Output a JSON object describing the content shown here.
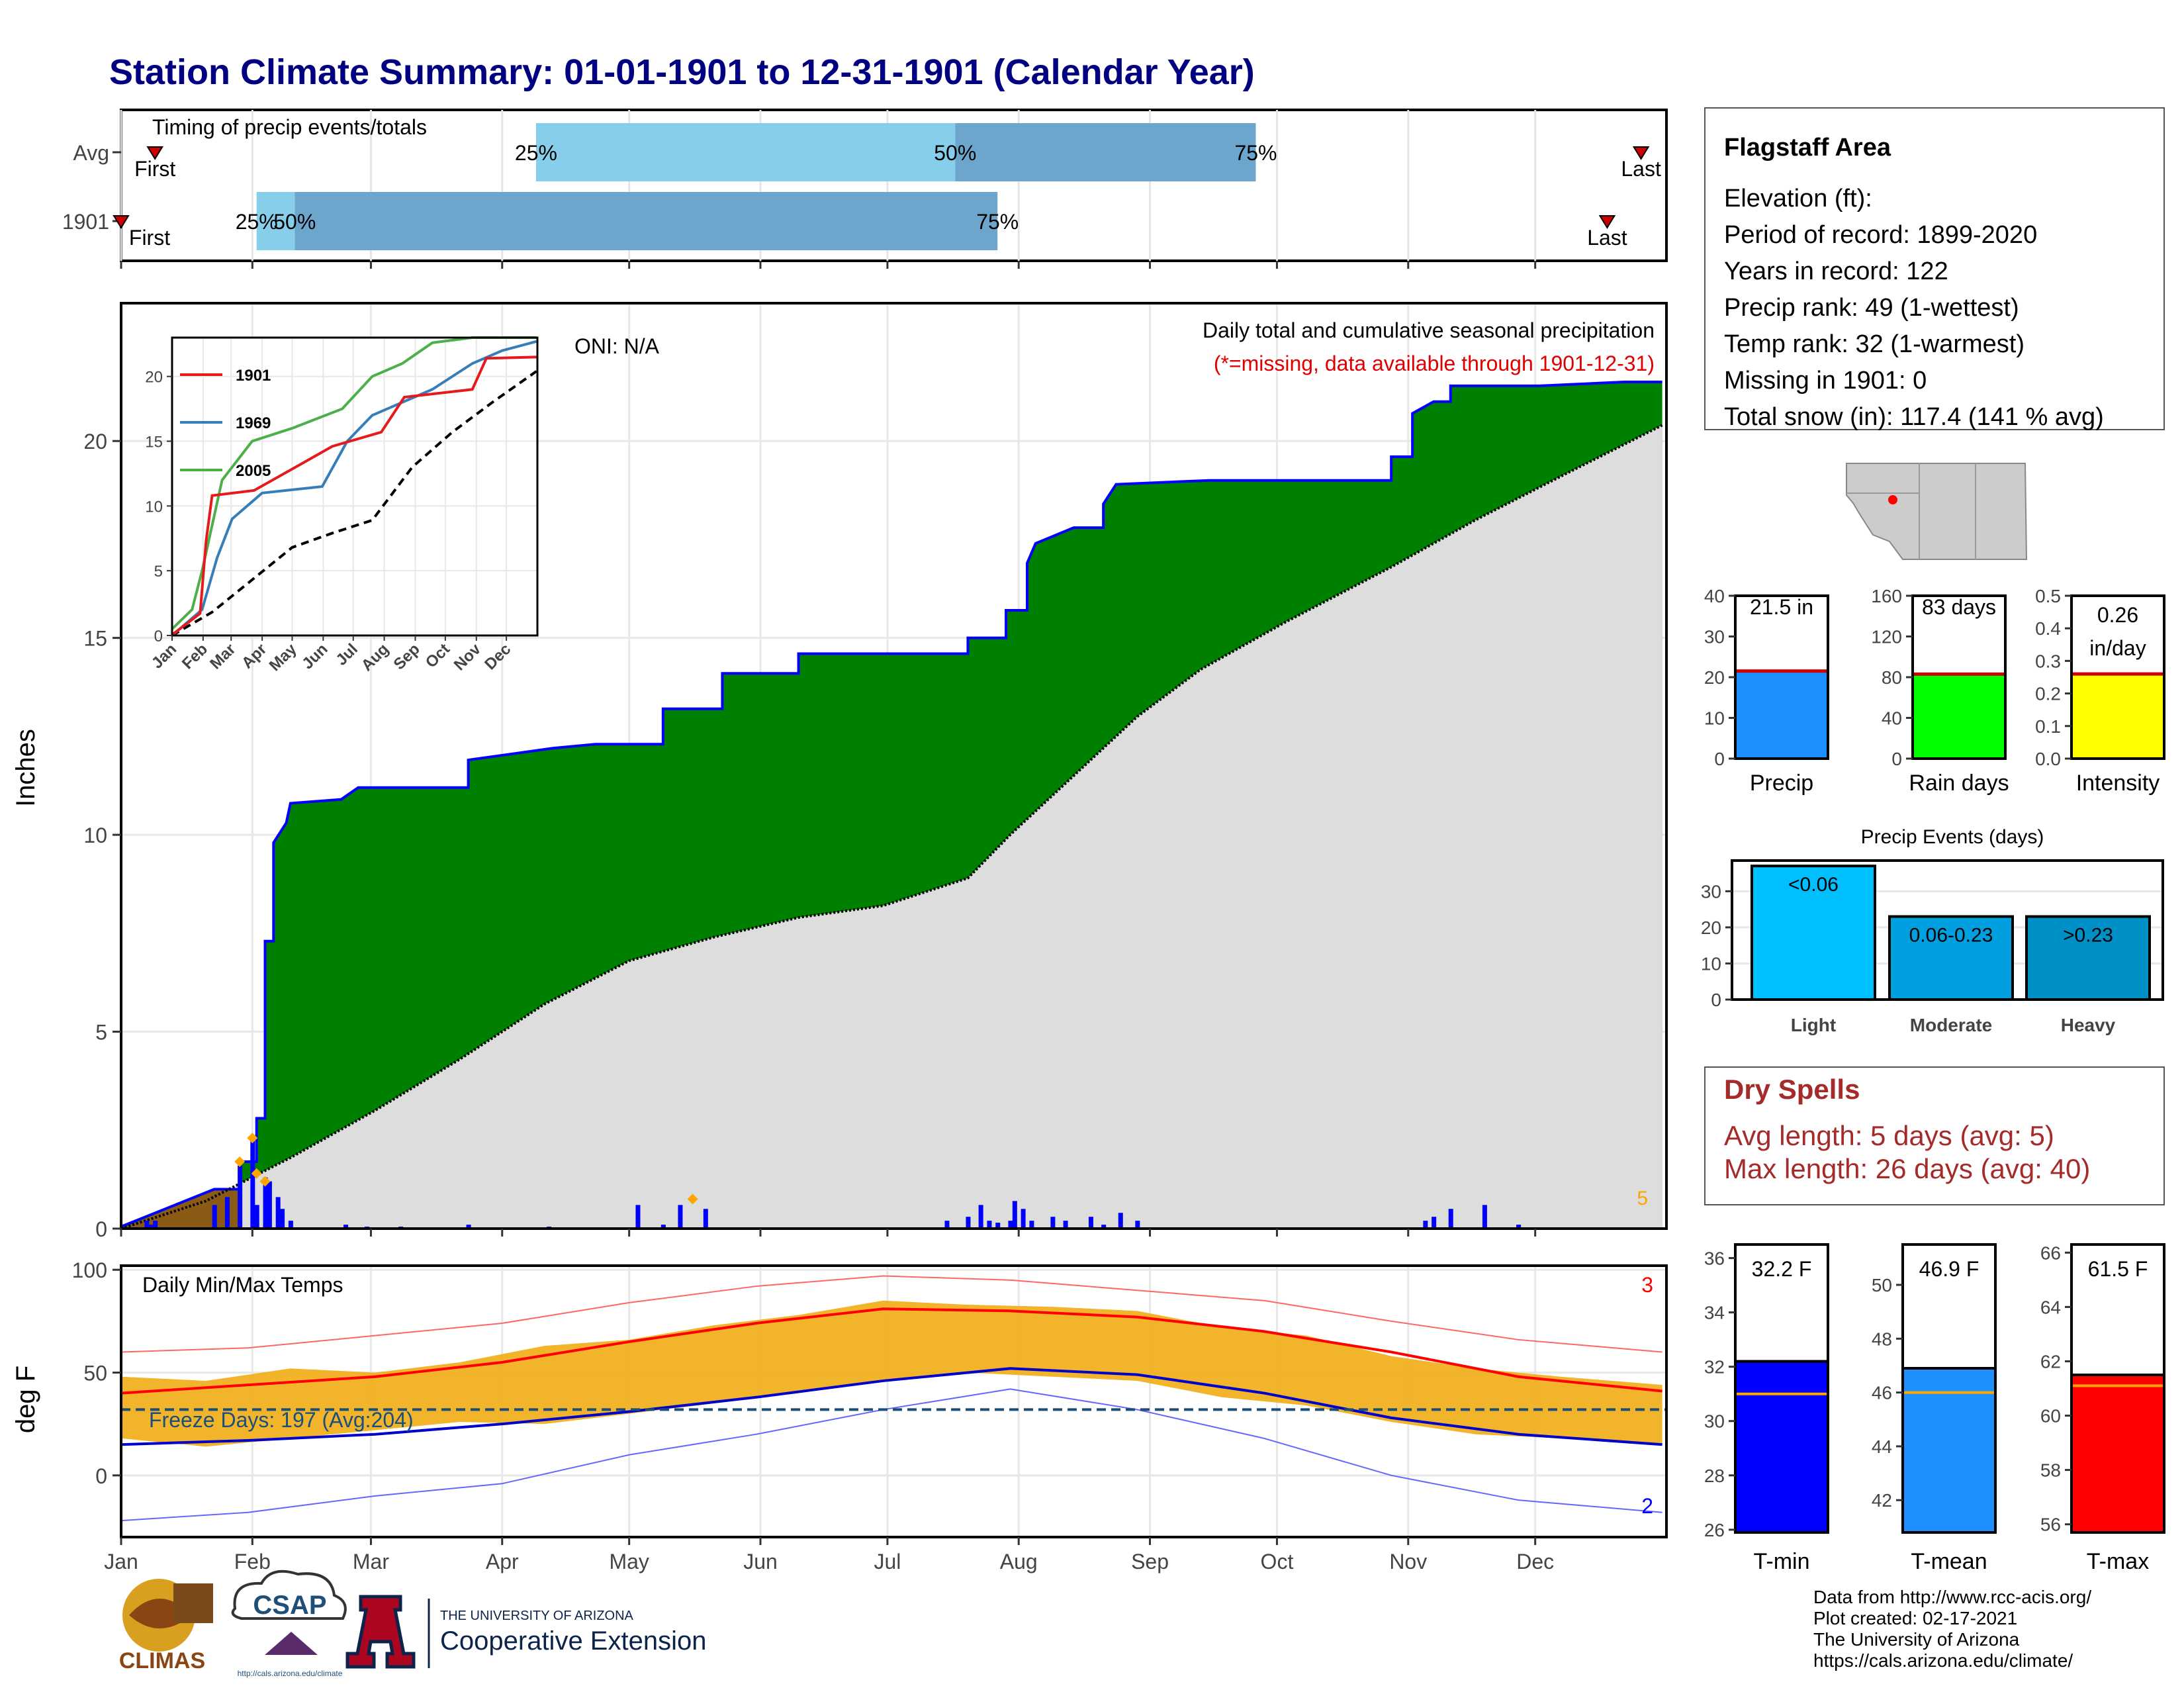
{
  "page_title": "Station Climate Summary: 01-01-1901 to 12-31-1901 (Calendar Year)",
  "months": [
    "Jan",
    "Feb",
    "Mar",
    "Apr",
    "May",
    "Jun",
    "Jul",
    "Aug",
    "Sep",
    "Oct",
    "Nov",
    "Dec"
  ],
  "timing": {
    "title": "Timing of precip events/totals",
    "rows": [
      {
        "label": "Avg",
        "first": "First",
        "last": "Last",
        "p25": "25%",
        "p50": "50%",
        "p75": "75%",
        "first_day": 8,
        "p25_day": 98,
        "p50_day": 197,
        "p75_day": 268,
        "last_day": 359
      },
      {
        "label": "1901",
        "first": "First",
        "last": "Last",
        "p25": "25%",
        "p50": "50%",
        "p75": "75%",
        "first_day": 0,
        "p25_day": 32,
        "p50_day": 41,
        "p75_day": 207,
        "last_day": 351
      }
    ]
  },
  "chart_data": [
    {
      "type": "area",
      "title": "Daily total and cumulative seasonal precipitation",
      "subtitle": "(*=missing, data available through 1901-12-31)",
      "annotation": "ONI: N/A",
      "ylabel": "Inches",
      "ylim": [
        0,
        23.5
      ],
      "yticks": [
        0,
        5,
        10,
        15,
        20
      ],
      "corner_label": "5",
      "series": [
        {
          "name": "1901 cumulative",
          "color": "#0000ff",
          "fill": "#008000",
          "points": [
            [
              0,
              0.05
            ],
            [
              22,
              1.0
            ],
            [
              28,
              1.0
            ],
            [
              28,
              1.7
            ],
            [
              32,
              1.7
            ],
            [
              32,
              2.8
            ],
            [
              34,
              2.8
            ],
            [
              34,
              7.3
            ],
            [
              36,
              7.3
            ],
            [
              36,
              9.8
            ],
            [
              39,
              10.3
            ],
            [
              40,
              10.8
            ],
            [
              52,
              10.9
            ],
            [
              56,
              11.2
            ],
            [
              82,
              11.2
            ],
            [
              82,
              11.9
            ],
            [
              102,
              12.2
            ],
            [
              112,
              12.3
            ],
            [
              128,
              12.3
            ],
            [
              128,
              13.2
            ],
            [
              142,
              13.2
            ],
            [
              142,
              14.1
            ],
            [
              160,
              14.1
            ],
            [
              160,
              14.6
            ],
            [
              200,
              14.6
            ],
            [
              200,
              15.0
            ],
            [
              209,
              15.0
            ],
            [
              209,
              15.7
            ],
            [
              214,
              15.7
            ],
            [
              214,
              16.9
            ],
            [
              216,
              17.4
            ],
            [
              225,
              17.8
            ],
            [
              232,
              17.8
            ],
            [
              232,
              18.4
            ],
            [
              235,
              18.9
            ],
            [
              257,
              19.0
            ],
            [
              300,
              19.0
            ],
            [
              300,
              19.6
            ],
            [
              305,
              19.6
            ],
            [
              305,
              20.7
            ],
            [
              310,
              21.0
            ],
            [
              314,
              21.0
            ],
            [
              314,
              21.4
            ],
            [
              335,
              21.4
            ],
            [
              355,
              21.5
            ],
            [
              364,
              21.5
            ]
          ]
        },
        {
          "name": "Avg cumulative",
          "color": "#000000",
          "fill": "#dddddd",
          "points": [
            [
              0,
              0
            ],
            [
              20,
              0.7
            ],
            [
              40,
              1.8
            ],
            [
              60,
              3.0
            ],
            [
              80,
              4.3
            ],
            [
              100,
              5.7
            ],
            [
              120,
              6.8
            ],
            [
              140,
              7.4
            ],
            [
              160,
              7.9
            ],
            [
              180,
              8.2
            ],
            [
              200,
              8.9
            ],
            [
              210,
              10.0
            ],
            [
              225,
              11.5
            ],
            [
              240,
              13.0
            ],
            [
              255,
              14.2
            ],
            [
              275,
              15.4
            ],
            [
              300,
              16.8
            ],
            [
              320,
              18.0
            ],
            [
              340,
              19.1
            ],
            [
              364,
              20.4
            ]
          ]
        }
      ],
      "daily_bars_1901": [
        [
          6,
          0.2
        ],
        [
          7,
          0.1
        ],
        [
          8,
          0.2
        ],
        [
          22,
          0.6
        ],
        [
          25,
          0.8
        ],
        [
          28,
          1.6
        ],
        [
          31,
          2.3
        ],
        [
          32,
          0.6
        ],
        [
          34,
          1.3
        ],
        [
          35,
          1.2
        ],
        [
          37,
          0.8
        ],
        [
          38,
          0.5
        ],
        [
          40,
          0.2
        ],
        [
          53,
          0.1
        ],
        [
          58,
          0.05
        ],
        [
          66,
          0.05
        ],
        [
          82,
          0.1
        ],
        [
          101,
          0.05
        ],
        [
          122,
          0.6
        ],
        [
          128,
          0.1
        ],
        [
          132,
          0.6
        ],
        [
          138,
          0.5
        ],
        [
          195,
          0.2
        ],
        [
          200,
          0.3
        ],
        [
          203,
          0.6
        ],
        [
          205,
          0.2
        ],
        [
          207,
          0.15
        ],
        [
          210,
          0.2
        ],
        [
          211,
          0.7
        ],
        [
          213,
          0.5
        ],
        [
          215,
          0.2
        ],
        [
          220,
          0.3
        ],
        [
          223,
          0.2
        ],
        [
          229,
          0.3
        ],
        [
          232,
          0.1
        ],
        [
          236,
          0.4
        ],
        [
          240,
          0.2
        ],
        [
          308,
          0.2
        ],
        [
          310,
          0.3
        ],
        [
          314,
          0.5
        ],
        [
          322,
          0.6
        ],
        [
          330,
          0.1
        ]
      ],
      "record_markers": [
        [
          28,
          1.7
        ],
        [
          31,
          2.3
        ],
        [
          32,
          1.4
        ],
        [
          34,
          1.2
        ],
        [
          135,
          0.75
        ]
      ]
    },
    {
      "type": "line",
      "title": "Daily Min/Max Temps",
      "ylabel": "deg F",
      "ylim": [
        -30,
        102
      ],
      "yticks": [
        0,
        50,
        100
      ],
      "freeze_line": 32,
      "freeze_label": "Freeze Days: 197 (Avg:204)",
      "corner_top": "3",
      "corner_bottom": "2",
      "series": [
        {
          "name": "Avg max",
          "color": "#ff0000",
          "points": [
            [
              0,
              40
            ],
            [
              30,
              44
            ],
            [
              60,
              48
            ],
            [
              90,
              55
            ],
            [
              120,
              65
            ],
            [
              150,
              74
            ],
            [
              180,
              81
            ],
            [
              210,
              80
            ],
            [
              240,
              77
            ],
            [
              270,
              70
            ],
            [
              300,
              60
            ],
            [
              330,
              48
            ],
            [
              364,
              41
            ]
          ]
        },
        {
          "name": "Avg min",
          "color": "#0000cc",
          "points": [
            [
              0,
              15
            ],
            [
              30,
              17
            ],
            [
              60,
              20
            ],
            [
              90,
              25
            ],
            [
              120,
              31
            ],
            [
              150,
              38
            ],
            [
              180,
              46
            ],
            [
              210,
              52
            ],
            [
              240,
              49
            ],
            [
              270,
              40
            ],
            [
              300,
              28
            ],
            [
              330,
              20
            ],
            [
              364,
              15
            ]
          ]
        },
        {
          "name": "Record max",
          "color": "#ff6666",
          "points": [
            [
              0,
              60
            ],
            [
              30,
              62
            ],
            [
              60,
              68
            ],
            [
              90,
              74
            ],
            [
              120,
              84
            ],
            [
              150,
              92
            ],
            [
              180,
              97
            ],
            [
              210,
              95
            ],
            [
              240,
              90
            ],
            [
              270,
              85
            ],
            [
              300,
              75
            ],
            [
              330,
              66
            ],
            [
              364,
              60
            ]
          ]
        },
        {
          "name": "Record min",
          "color": "#6666ff",
          "points": [
            [
              0,
              -22
            ],
            [
              30,
              -18
            ],
            [
              60,
              -10
            ],
            [
              90,
              -4
            ],
            [
              120,
              10
            ],
            [
              150,
              20
            ],
            [
              180,
              32
            ],
            [
              210,
              42
            ],
            [
              240,
              32
            ],
            [
              270,
              18
            ],
            [
              300,
              0
            ],
            [
              330,
              -12
            ],
            [
              364,
              -18
            ]
          ]
        }
      ],
      "band_1901": [
        [
          0,
          18,
          48
        ],
        [
          20,
          14,
          46
        ],
        [
          40,
          18,
          52
        ],
        [
          60,
          22,
          50
        ],
        [
          80,
          26,
          55
        ],
        [
          100,
          25,
          63
        ],
        [
          120,
          30,
          66
        ],
        [
          140,
          35,
          73
        ],
        [
          160,
          40,
          78
        ],
        [
          180,
          46,
          85
        ],
        [
          200,
          50,
          83
        ],
        [
          220,
          48,
          82
        ],
        [
          240,
          46,
          80
        ],
        [
          260,
          38,
          72
        ],
        [
          280,
          34,
          68
        ],
        [
          300,
          26,
          58
        ],
        [
          320,
          20,
          52
        ],
        [
          340,
          18,
          48
        ],
        [
          364,
          15,
          44
        ]
      ]
    }
  ],
  "station_box": {
    "title": "Flagstaff Area",
    "lines": [
      "Elevation (ft):",
      "Period of record: 1899-2020",
      "Years in record: 122",
      "Precip rank: 49 (1-wettest)",
      "Temp rank: 32 (1-warmest)",
      "Missing in 1901: 0",
      "Total snow (in): 117.4 (141 % avg)"
    ]
  },
  "mini_bars": [
    {
      "label": "Precip",
      "value": 21.5,
      "value_text": "21.5 in",
      "avg": 21.5,
      "ymax": 40,
      "ticks": [
        "0",
        "10",
        "20",
        "30",
        "40"
      ],
      "color": "#1e90ff"
    },
    {
      "label": "Rain days",
      "value": 83,
      "value_text": "83 days",
      "avg": 83,
      "ymax": 160,
      "ticks": [
        "0",
        "40",
        "80",
        "120",
        "160"
      ],
      "color": "#00ff00"
    },
    {
      "label": "Intensity",
      "value": 0.26,
      "value_text": "0.26",
      "value_text2": "in/day",
      "avg": 0.26,
      "ymax": 0.5,
      "ticks": [
        "0.0",
        "0.1",
        "0.2",
        "0.3",
        "0.4",
        "0.5"
      ],
      "color": "#ffff00"
    }
  ],
  "events": {
    "title": "Precip Events (days)",
    "ymax": 37,
    "ticks": [
      "0",
      "10",
      "20",
      "30"
    ],
    "bars": [
      {
        "category": "Light",
        "range": "<0.06",
        "value": 37,
        "color": "#00bfff"
      },
      {
        "category": "Moderate",
        "range": "0.06-0.23",
        "value": 23,
        "color": "#009fdf"
      },
      {
        "category": "Heavy",
        "range": ">0.23",
        "value": 23,
        "color": "#0090c8"
      }
    ]
  },
  "dry_spells": {
    "title": "Dry Spells",
    "avg_line": "Avg length: 5 days (avg: 5)",
    "max_line": "Max length: 26 days (avg: 40)"
  },
  "temp_bars": [
    {
      "label": "T-min",
      "value": 32.2,
      "value_text": "32.2 F",
      "avg": 31.0,
      "ymin": 25.9,
      "ymax": 36.5,
      "ticks": [
        26,
        28,
        30,
        32,
        34,
        36
      ],
      "color": "#0000ff"
    },
    {
      "label": "T-mean",
      "value": 46.9,
      "value_text": "46.9 F",
      "avg": 46.0,
      "ymin": 40.8,
      "ymax": 51.5,
      "ticks": [
        42,
        44,
        46,
        48,
        50
      ],
      "color": "#1e90ff"
    },
    {
      "label": "T-max",
      "value": 61.5,
      "value_text": "61.5 F",
      "avg": 61.1,
      "ymin": 55.7,
      "ymax": 66.3,
      "ticks": [
        56,
        58,
        60,
        62,
        64,
        66
      ],
      "color": "#ff0000"
    }
  ],
  "inset": {
    "legend": [
      "1901",
      "1969",
      "2005"
    ],
    "legend_colors": [
      "#e41a1c",
      "#377eb8",
      "#4daf4a"
    ],
    "yticks": [
      "0",
      "5",
      "10",
      "15",
      "20"
    ],
    "months": [
      "Jan",
      "Feb",
      "Mar",
      "Apr",
      "May",
      "Jun",
      "Jul",
      "Aug",
      "Sep",
      "Oct",
      "Nov",
      "Dec"
    ]
  },
  "credits": [
    "Data from http://www.rcc-acis.org/",
    "Plot created: 02-17-2021",
    "The University of Arizona",
    "https://cals.arizona.edu/climate/"
  ],
  "logos": {
    "climas": "CLIMAS",
    "csap": "CSAP",
    "ua_small": "THE UNIVERSITY OF ARIZONA",
    "ua_big": "Cooperative Extension",
    "csap_url": "http://cals.arizona.edu/climate"
  }
}
